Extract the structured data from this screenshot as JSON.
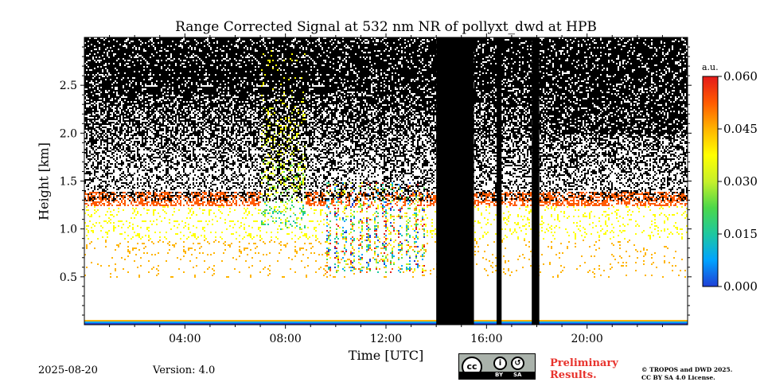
{
  "chart_data": {
    "type": "heatmap",
    "title": "Range Corrected Signal at 532 nm NR of pollyxt_dwd at HPB",
    "xlabel": "Time [UTC]",
    "ylabel": "Height [km]",
    "x_range_hours": [
      0,
      24
    ],
    "x_ticks": [
      "04:00",
      "08:00",
      "12:00",
      "16:00",
      "20:00"
    ],
    "x_tick_values": [
      4,
      8,
      12,
      16,
      20
    ],
    "y_range_km": [
      0,
      3.0
    ],
    "y_ticks": [
      "0.5",
      "1.0",
      "1.5",
      "2.0",
      "2.5"
    ],
    "y_tick_values": [
      0.5,
      1.0,
      1.5,
      2.0,
      2.5
    ],
    "colorbar": {
      "unit": "a.u.",
      "range": [
        0.0,
        0.06
      ],
      "ticks": [
        "0.000",
        "0.015",
        "0.030",
        "0.045",
        "0.060"
      ],
      "tick_values": [
        0.0,
        0.015,
        0.03,
        0.045,
        0.06
      ],
      "colormap": [
        "#1f3fd6",
        "#00a3ff",
        "#1ec8a0",
        "#4cd84a",
        "#c6f02a",
        "#ffff00",
        "#ffb400",
        "#ff5a00",
        "#e41a1a"
      ]
    },
    "boundary_layer_top_km": 1.3,
    "no_data_periods_hours": [
      [
        14.0,
        15.5
      ],
      [
        16.4,
        16.6
      ],
      [
        17.8,
        18.1
      ]
    ]
  },
  "footer": {
    "date": "2025-08-20",
    "version": "Version: 4.0",
    "preliminary_line1": "Preliminary",
    "preliminary_line2": "Results.",
    "copyright_line1": "© TROPOS and DWD 2025.",
    "copyright_line2": "CC BY SA 4.0 License.",
    "license_logo_text": "cc",
    "license_by": "BY",
    "license_sa": "SA"
  },
  "colors": {
    "prelim": "#e8332d",
    "nodata": "#000000",
    "background": "#ffffff"
  }
}
